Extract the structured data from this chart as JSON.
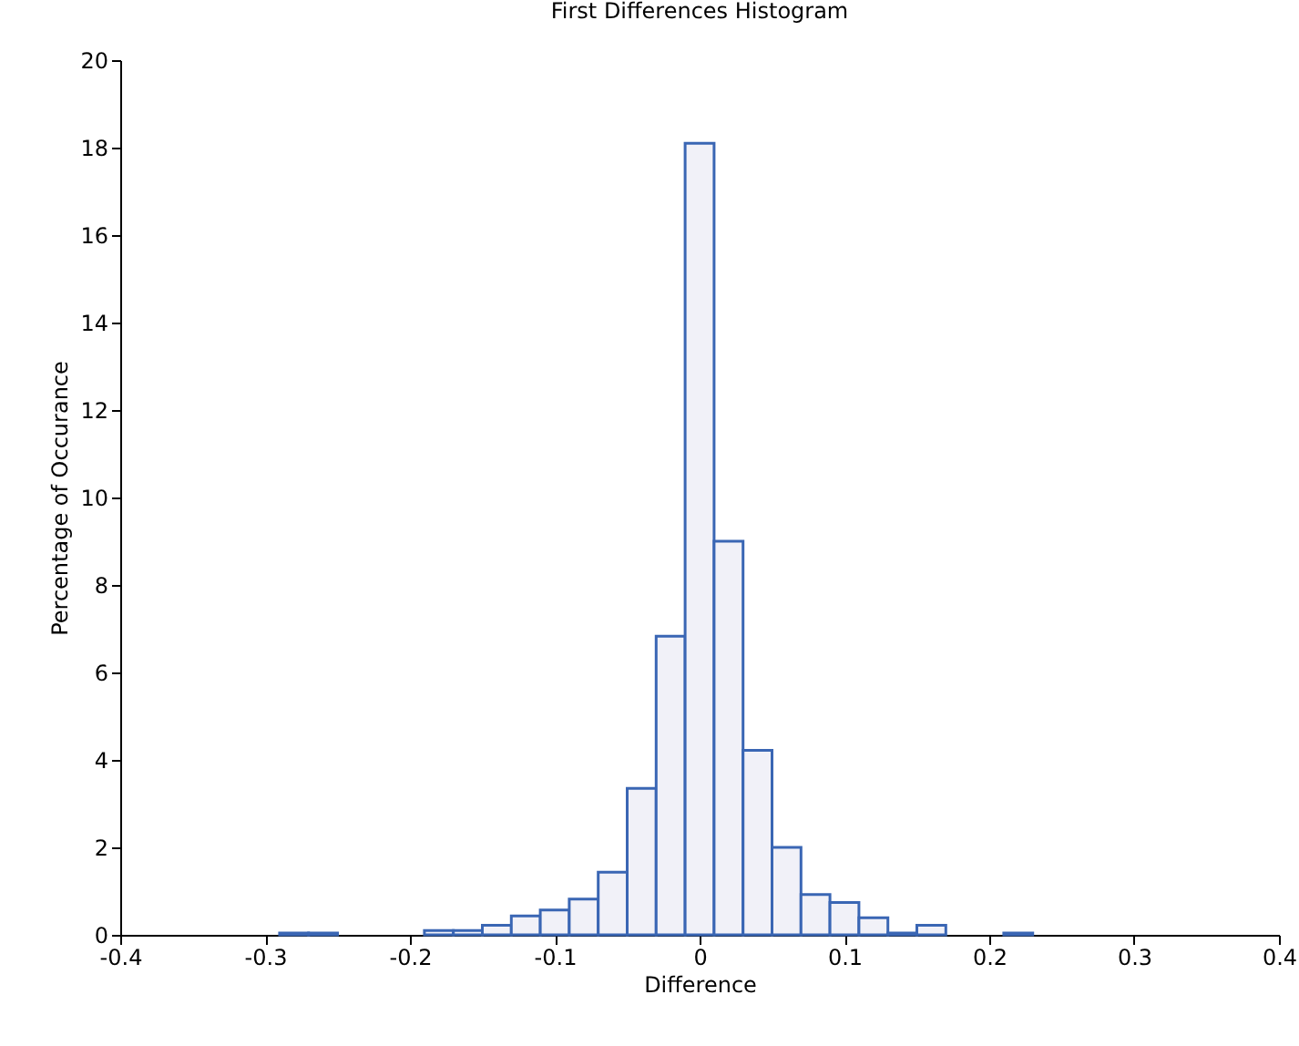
{
  "chart_data": {
    "type": "histogram",
    "title": "First Differences Histogram",
    "xlabel": "Difference",
    "ylabel": "Percentage of Occurance",
    "bins": [
      -0.29,
      -0.27,
      -0.25,
      -0.23,
      -0.21,
      -0.19,
      -0.17,
      -0.15,
      -0.13,
      -0.11,
      -0.09,
      -0.07,
      -0.05,
      -0.03,
      -0.01,
      0.01,
      0.03,
      0.05,
      0.07,
      0.09,
      0.11,
      0.13,
      0.15,
      0.17,
      0.19,
      0.21,
      0.23
    ],
    "values": [
      0.04,
      0.04,
      0,
      0,
      0,
      0.1,
      0.1,
      0.22,
      0.43,
      0.57,
      0.82,
      1.43,
      3.35,
      6.83,
      18.1,
      9.0,
      4.22,
      2.0,
      0.92,
      0.74,
      0.39,
      0.04,
      0.22,
      0,
      0,
      0.04
    ],
    "color": "#3a66b4",
    "xlim": [
      -0.4,
      0.4
    ],
    "xticks": [
      -0.4,
      -0.3,
      -0.2,
      -0.1,
      0,
      0.1,
      0.2,
      0.3,
      0.4
    ],
    "ylim": [
      0,
      20
    ],
    "yticks": [
      0,
      2,
      4,
      6,
      8,
      10,
      12,
      14,
      16,
      18,
      20
    ],
    "grid": false
  }
}
